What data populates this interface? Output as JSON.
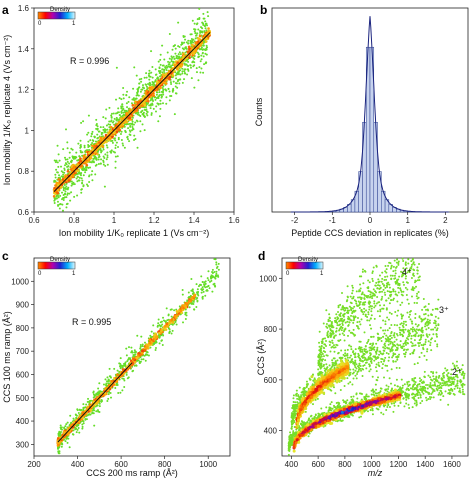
{
  "chart_data": [
    {
      "panel": "a",
      "type": "scatter",
      "xlabel": "Ion mobility 1/K₀ replicate 1 (Vs cm⁻²)",
      "ylabel": "Ion mobility 1/K₀ replicate 4 (Vs cm⁻²)",
      "xlim": [
        0.6,
        1.6
      ],
      "ylim": [
        0.6,
        1.6
      ],
      "xticks": [
        "0.6",
        "0.8",
        "1",
        "1.2",
        "1.4",
        "1.6"
      ],
      "yticks": [
        "0.6",
        "0.8",
        "1",
        "1.2",
        "1.4",
        "1.6"
      ],
      "annotation": "R = 0.996",
      "legend": {
        "title": "Density",
        "min": "0",
        "max": "1",
        "placement": "top-left"
      },
      "trend": {
        "x_start": 0.7,
        "x_end": 1.48,
        "slope": 1.0,
        "intercept": 0.0,
        "scatter_sd": 0.06
      }
    },
    {
      "panel": "b",
      "type": "bar",
      "xlabel": "Peptide CCS deviation in replicates (%)",
      "ylabel": "Counts",
      "xlim": [
        -2.6,
        2.6
      ],
      "xticks": [
        "-2",
        "-1",
        "0",
        "1",
        "2"
      ],
      "histogram": {
        "center": 0.0,
        "width": 0.27,
        "bin": 0.1,
        "range": [
          -2.1,
          2.1
        ]
      }
    },
    {
      "panel": "c",
      "type": "scatter",
      "xlabel": "CCS 200 ms ramp (Å²)",
      "ylabel": "CCS 100 ms ramp (Å²)",
      "xlim": [
        200,
        1100
      ],
      "ylim": [
        250,
        1100
      ],
      "xticks": [
        "200",
        "400",
        "600",
        "800",
        "1000"
      ],
      "yticks": [
        "300",
        "400",
        "500",
        "600",
        "700",
        "800",
        "900",
        "1000"
      ],
      "annotation": "R = 0.995",
      "legend": {
        "title": "Density",
        "min": "0",
        "max": "1",
        "placement": "top-left"
      },
      "trend": {
        "x_start": 310,
        "x_end": 1050,
        "slope": 1.0,
        "intercept": 0.0,
        "scatter_sd": 25
      }
    },
    {
      "panel": "d",
      "type": "scatter",
      "xlabel": "m/z",
      "ylabel": "CCS (Å²)",
      "xlim": [
        330,
        1720
      ],
      "ylim": [
        300,
        1080
      ],
      "xticks": [
        "400",
        "600",
        "800",
        "1000",
        "1200",
        "1400",
        "1600"
      ],
      "yticks": [
        "400",
        "600",
        "800",
        "1000"
      ],
      "legend": {
        "title": "Density",
        "min": "0",
        "max": "1",
        "placement": "top-left"
      },
      "series": [
        {
          "name": "2⁺",
          "x_range": [
            380,
            1700
          ],
          "ccs_start": 330,
          "ccs_end": 600
        },
        {
          "name": "3⁺",
          "x_range": [
            400,
            1500
          ],
          "ccs_start": 420,
          "ccs_end": 810
        },
        {
          "name": "4⁺",
          "x_range": [
            600,
            1360
          ],
          "ccs_start": 640,
          "ccs_end": 1040
        }
      ]
    }
  ]
}
